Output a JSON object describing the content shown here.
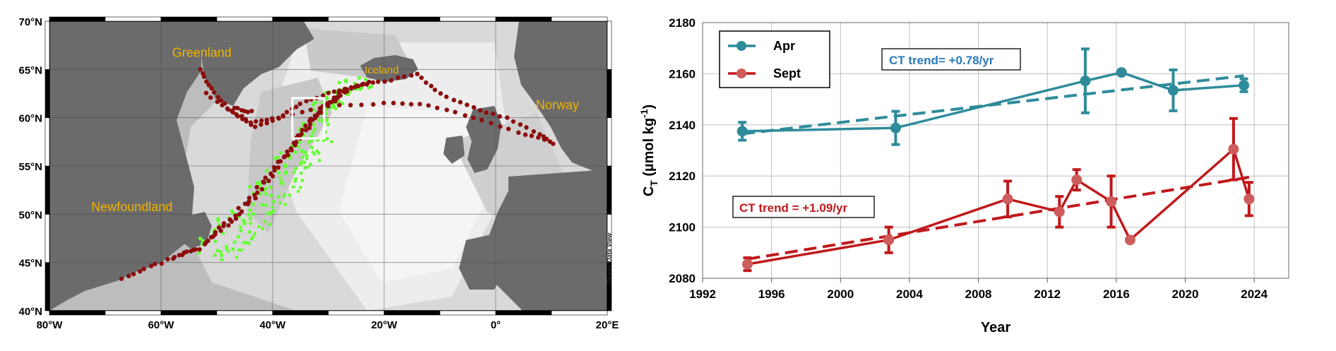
{
  "map": {
    "lat_labels": [
      "70°N",
      "65°N",
      "60°N",
      "55°N",
      "50°N",
      "45°N",
      "40°N"
    ],
    "lon_labels": [
      "80°W",
      "60°W",
      "40°W",
      "20°W",
      "0°",
      "20°E"
    ],
    "places": [
      {
        "key": "greenland",
        "label": "Greenland",
        "lon": -58,
        "lat": 66.3
      },
      {
        "key": "iceland",
        "label": "Iceland",
        "lon": -23.5,
        "lat": 64.6
      },
      {
        "key": "norway",
        "label": "Norway",
        "lon": 7.2,
        "lat": 60.9
      },
      {
        "key": "newfoundland",
        "label": "Newfoundland",
        "lon": -72.5,
        "lat": 50.3
      }
    ],
    "credit": "Ocean Data View",
    "colors": {
      "track": "#8b0d0d",
      "track_alt": "#66ff33",
      "label": "#f0b400",
      "box": "#ffffff"
    }
  },
  "chart_data": {
    "type": "line",
    "xlabel": "Year",
    "ylabel_main": "C",
    "ylabel_sub": "T",
    "ylabel_rest": " (µmol kg",
    "ylabel_sup": "-1",
    "ylabel_end": ")",
    "xlim": [
      1992,
      2026
    ],
    "ylim": [
      2080,
      2180
    ],
    "xticks": [
      1992,
      1996,
      2000,
      2004,
      2008,
      2012,
      2016,
      2020,
      2024
    ],
    "yticks": [
      2080,
      2100,
      2120,
      2140,
      2160,
      2180
    ],
    "grid": true,
    "legend_position": "top-left",
    "series": [
      {
        "name": "Apr",
        "color": "#2e8b9a",
        "points": [
          {
            "x": 1994.3,
            "y": 2137.5,
            "err": 3.5
          },
          {
            "x": 2003.2,
            "y": 2138.8,
            "err": 6.5
          },
          {
            "x": 2014.2,
            "y": 2157.2,
            "err": 12.5
          },
          {
            "x": 2016.3,
            "y": 2160.5,
            "err": 0
          },
          {
            "x": 2019.3,
            "y": 2153.5,
            "err": 8
          },
          {
            "x": 2023.4,
            "y": 2155.5,
            "err": 2.5
          }
        ],
        "trend": {
          "x": [
            1994.3,
            2023.4
          ],
          "y": [
            2136.5,
            2159.2
          ]
        },
        "trend_label": "CT trend= +0.78/yr"
      },
      {
        "name": "Sept",
        "color": "#c0191c",
        "points": [
          {
            "x": 1994.6,
            "y": 2085.5,
            "err": 2.5
          },
          {
            "x": 2002.8,
            "y": 2095,
            "err": 5
          },
          {
            "x": 2009.7,
            "y": 2111,
            "err": 7
          },
          {
            "x": 2012.7,
            "y": 2106,
            "err": 6
          },
          {
            "x": 2013.7,
            "y": 2118.5,
            "err": 4
          },
          {
            "x": 2015.7,
            "y": 2110,
            "err": 10
          },
          {
            "x": 2016.8,
            "y": 2095,
            "err": 0
          },
          {
            "x": 2022.8,
            "y": 2130.5,
            "err": 12
          },
          {
            "x": 2023.7,
            "y": 2111,
            "err": 6.5
          }
        ],
        "trend": {
          "x": [
            1994.6,
            2023.7
          ],
          "y": [
            2087.5,
            2119.5
          ]
        },
        "trend_label": "CT trend = +1.09/yr"
      }
    ]
  }
}
